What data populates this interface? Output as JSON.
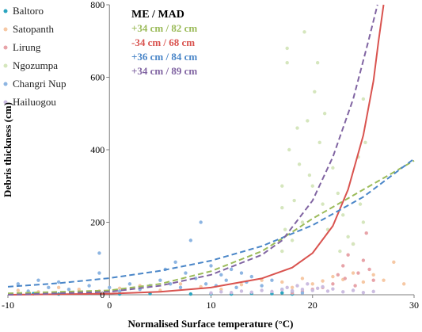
{
  "chart_data": {
    "type": "scatter",
    "xlabel": "Normalised Surface temperature (°C)",
    "ylabel": "Debris thickness (cm)",
    "xlim": [
      -10,
      30
    ],
    "ylim": [
      0,
      800
    ],
    "x_ticks": [
      -10,
      0,
      10,
      20,
      30
    ],
    "y_ticks": [
      0,
      200,
      400,
      600,
      800
    ],
    "grid": false,
    "legend_placement": "top-left",
    "series": [
      {
        "name": "Baltoro",
        "color": "#2aa4bf",
        "marker": "circle",
        "points": [
          [
            -7.5,
            3
          ],
          [
            -5,
            2
          ],
          [
            -2,
            4
          ],
          [
            1,
            2
          ],
          [
            4,
            3
          ],
          [
            8,
            2
          ],
          [
            10,
            3
          ],
          [
            12,
            2
          ],
          [
            14,
            4
          ],
          [
            16,
            3
          ],
          [
            17,
            5
          ],
          [
            18,
            2
          ]
        ]
      },
      {
        "name": "Satopanth",
        "color": "#f6c8a4",
        "marker": "circle",
        "points": [
          [
            -9,
            12
          ],
          [
            -7,
            8
          ],
          [
            -5,
            20
          ],
          [
            -3,
            15
          ],
          [
            -1,
            10
          ],
          [
            1,
            18
          ],
          [
            3,
            25
          ],
          [
            5,
            12
          ],
          [
            7,
            30
          ],
          [
            9,
            22
          ],
          [
            11,
            15
          ],
          [
            13,
            28
          ],
          [
            15,
            40
          ],
          [
            17,
            35
          ],
          [
            18,
            20
          ],
          [
            19,
            45
          ],
          [
            20,
            30
          ],
          [
            21,
            38
          ],
          [
            22,
            50
          ],
          [
            23,
            42
          ],
          [
            24,
            60
          ],
          [
            25,
            35
          ],
          [
            26,
            55
          ],
          [
            27,
            40
          ],
          [
            28,
            90
          ],
          [
            29,
            30
          ]
        ]
      },
      {
        "name": "Lirung",
        "color": "#e7a3a8",
        "marker": "circle",
        "points": [
          [
            18,
            5
          ],
          [
            19,
            10
          ],
          [
            20,
            15
          ],
          [
            21,
            20
          ],
          [
            22,
            30
          ],
          [
            22.5,
            55
          ],
          [
            23,
            80
          ],
          [
            23.5,
            110
          ],
          [
            24,
            140
          ],
          [
            24.5,
            60
          ],
          [
            25,
            95
          ],
          [
            25.3,
            170
          ],
          [
            25.6,
            70
          ],
          [
            26,
            40
          ],
          [
            24.2,
            25
          ],
          [
            23.2,
            45
          ]
        ]
      },
      {
        "name": "Ngozumpa",
        "color": "#d5e6bd",
        "marker": "circle",
        "points": [
          [
            17,
            120
          ],
          [
            17,
            240
          ],
          [
            17,
            300
          ],
          [
            17.3,
            180
          ],
          [
            17.5,
            640
          ],
          [
            17.5,
            680
          ],
          [
            17.7,
            400
          ],
          [
            18,
            150
          ],
          [
            18.5,
            460
          ],
          [
            18.7,
            360
          ],
          [
            19,
            200
          ],
          [
            19.2,
            725
          ],
          [
            19.5,
            480
          ],
          [
            20,
            300
          ],
          [
            20.2,
            560
          ],
          [
            20.5,
            640
          ],
          [
            20.7,
            420
          ],
          [
            21,
            250
          ],
          [
            21.5,
            180
          ],
          [
            22,
            350
          ],
          [
            22.5,
            280
          ],
          [
            23,
            220
          ],
          [
            23.5,
            160
          ],
          [
            24,
            140
          ],
          [
            24.5,
            380
          ],
          [
            25,
            540
          ],
          [
            25,
            200
          ],
          [
            25.2,
            420
          ],
          [
            22.7,
            120
          ],
          [
            21.2,
            500
          ],
          [
            19.7,
            330
          ],
          [
            18.2,
            260
          ],
          [
            24.7,
            250
          ]
        ]
      },
      {
        "name": "Changri Nup",
        "color": "#8db5e2",
        "marker": "circle",
        "points": [
          [
            -9,
            30
          ],
          [
            -8,
            10
          ],
          [
            -7,
            40
          ],
          [
            -6,
            20
          ],
          [
            -5,
            35
          ],
          [
            -4,
            15
          ],
          [
            -2,
            25
          ],
          [
            -1,
            115
          ],
          [
            -1,
            60
          ],
          [
            0,
            20
          ],
          [
            1,
            10
          ],
          [
            2,
            30
          ],
          [
            3,
            15
          ],
          [
            4,
            25
          ],
          [
            5,
            40
          ],
          [
            5.5,
            70
          ],
          [
            6,
            30
          ],
          [
            6.5,
            90
          ],
          [
            7,
            20
          ],
          [
            7.5,
            60
          ],
          [
            8,
            150
          ],
          [
            8.5,
            45
          ],
          [
            9,
            200
          ],
          [
            9.5,
            30
          ],
          [
            10,
            80
          ],
          [
            10.5,
            25
          ],
          [
            11,
            55
          ],
          [
            11.5,
            40
          ],
          [
            12,
            70
          ],
          [
            12.5,
            20
          ],
          [
            13,
            60
          ],
          [
            13.5,
            35
          ],
          [
            14,
            50
          ],
          [
            15,
            25
          ],
          [
            16,
            40
          ],
          [
            17,
            15
          ],
          [
            18,
            10
          ],
          [
            19,
            5
          ]
        ]
      },
      {
        "name": "Hailuogou",
        "color": "#cbbce0",
        "marker": "circle",
        "points": [
          [
            10,
            5
          ],
          [
            11,
            8
          ],
          [
            12,
            6
          ],
          [
            13,
            10
          ],
          [
            14,
            7
          ],
          [
            15,
            12
          ],
          [
            16,
            9
          ],
          [
            17,
            14
          ],
          [
            17.5,
            20
          ],
          [
            18,
            11
          ],
          [
            18.5,
            25
          ],
          [
            19,
            15
          ],
          [
            19.5,
            30
          ],
          [
            20,
            12
          ],
          [
            20.5,
            18
          ],
          [
            21,
            22
          ],
          [
            21.5,
            10
          ],
          [
            22,
            16
          ],
          [
            23,
            8
          ],
          [
            24,
            12
          ],
          [
            25,
            6
          ],
          [
            26,
            9
          ]
        ]
      }
    ],
    "fit_curves": [
      {
        "color": "#9bbb59",
        "dash": true,
        "points": [
          [
            -10,
            4
          ],
          [
            0,
            12
          ],
          [
            5,
            30
          ],
          [
            10,
            65
          ],
          [
            15,
            120
          ],
          [
            17,
            155
          ],
          [
            20,
            210
          ],
          [
            25,
            290
          ],
          [
            30,
            370
          ]
        ]
      },
      {
        "color": "#d9534f",
        "dash": false,
        "points": [
          [
            -10,
            0
          ],
          [
            0,
            3
          ],
          [
            5,
            8
          ],
          [
            10,
            20
          ],
          [
            15,
            45
          ],
          [
            18,
            75
          ],
          [
            20,
            115
          ],
          [
            22,
            190
          ],
          [
            23.5,
            290
          ],
          [
            25,
            440
          ],
          [
            26,
            590
          ],
          [
            26.5,
            700
          ],
          [
            27,
            800
          ]
        ]
      },
      {
        "color": "#4a86c8",
        "dash": true,
        "points": [
          [
            -10,
            22
          ],
          [
            -5,
            32
          ],
          [
            0,
            46
          ],
          [
            5,
            66
          ],
          [
            10,
            94
          ],
          [
            15,
            134
          ],
          [
            20,
            192
          ],
          [
            25,
            270
          ],
          [
            30,
            375
          ]
        ]
      },
      {
        "color": "#8064a2",
        "dash": true,
        "points": [
          [
            -10,
            0
          ],
          [
            0,
            8
          ],
          [
            5,
            25
          ],
          [
            10,
            55
          ],
          [
            15,
            110
          ],
          [
            17,
            150
          ],
          [
            20,
            260
          ],
          [
            22,
            380
          ],
          [
            24,
            540
          ],
          [
            25.5,
            700
          ],
          [
            26.4,
            800
          ]
        ]
      }
    ],
    "annotation_title": "ME / MAD",
    "annotations": [
      {
        "text": "+34 cm / 82 cm",
        "color": "#9bbb59"
      },
      {
        "text": "-34 cm / 68 cm",
        "color": "#d9534f"
      },
      {
        "text": "+36 cm / 84 cm",
        "color": "#4a86c8"
      },
      {
        "text": "+34 cm / 89 cm",
        "color": "#8064a2"
      }
    ]
  }
}
